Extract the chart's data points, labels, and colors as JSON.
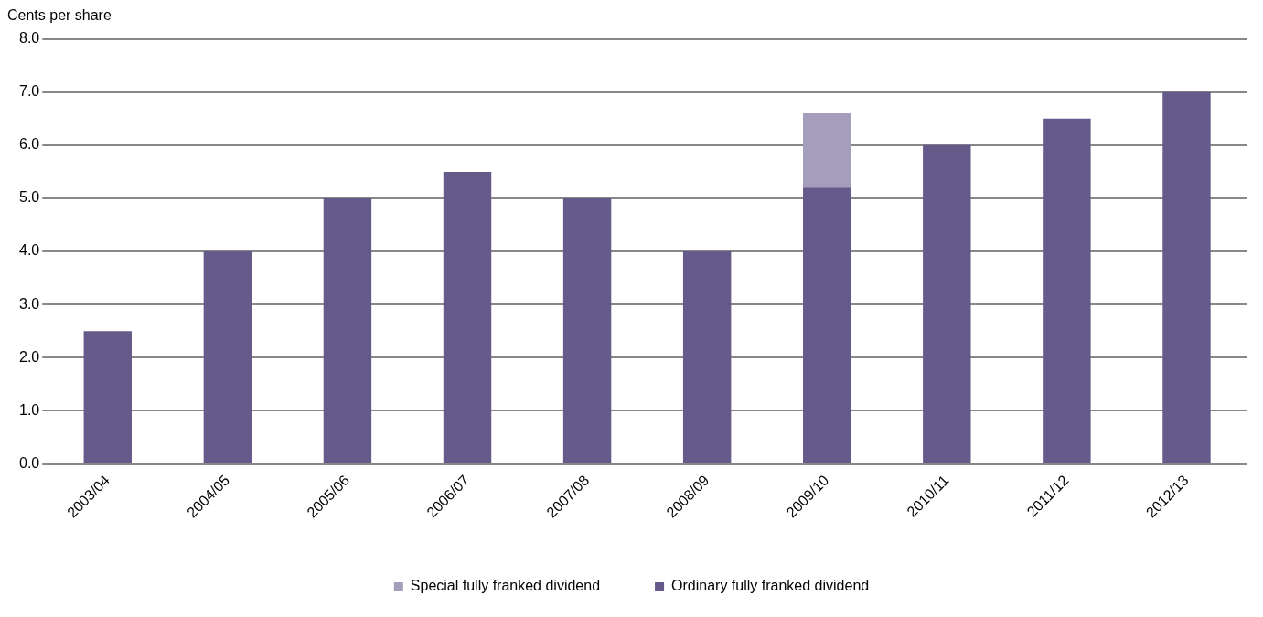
{
  "chart_data": {
    "type": "bar",
    "ylabel": "Cents per share",
    "stacked": true,
    "categories": [
      "2003/04",
      "2004/05",
      "2005/06",
      "2006/07",
      "2007/08",
      "2008/09",
      "2009/10",
      "2010/11",
      "2011/12",
      "2012/13"
    ],
    "series": [
      {
        "name": "Ordinary fully franked dividend",
        "color": "#665a8a",
        "values": [
          2.5,
          4,
          5,
          5.5,
          5,
          4,
          5.2,
          6,
          6.5,
          7
        ]
      },
      {
        "name": "Special fully franked dividend",
        "color": "#a59dbc",
        "values": [
          null,
          null,
          null,
          null,
          null,
          null,
          1.4,
          null,
          null,
          null
        ]
      }
    ],
    "ylim": [
      0,
      8
    ],
    "yticks": [
      {
        "value": 0,
        "label": "0.0"
      },
      {
        "value": 1,
        "label": "1.0"
      },
      {
        "value": 2,
        "label": "2.0"
      },
      {
        "value": 3,
        "label": "3.0"
      },
      {
        "value": 4,
        "label": "4.0"
      },
      {
        "value": 5,
        "label": "5.0"
      },
      {
        "value": 6,
        "label": "6.0"
      },
      {
        "value": 7,
        "label": "7.0"
      },
      {
        "value": 8,
        "label": "8.0"
      }
    ],
    "grid": "y",
    "legend": "bottom"
  }
}
